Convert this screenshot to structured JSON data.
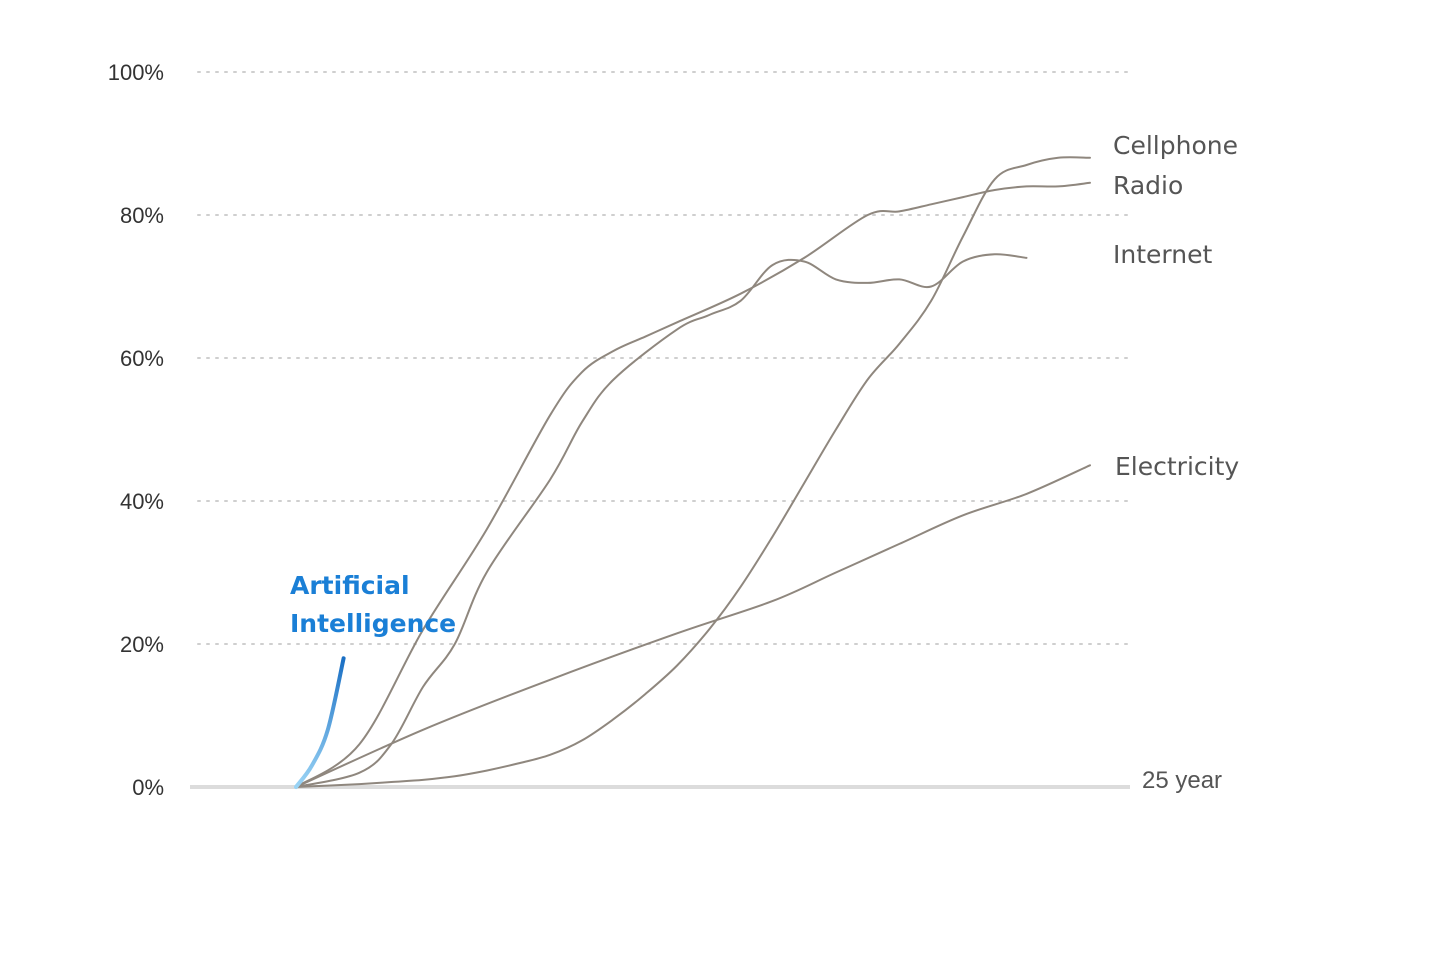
{
  "chart_data": {
    "type": "line",
    "title": "",
    "xlabel": "",
    "ylabel": "",
    "x_end_label": "25 year",
    "xlim": [
      0,
      25
    ],
    "ylim": [
      0,
      100
    ],
    "yticks": [
      0,
      20,
      40,
      60,
      80,
      100
    ],
    "ytick_labels": [
      "0%",
      "20%",
      "40%",
      "60%",
      "80%",
      "100%"
    ],
    "grid": true,
    "legend": "end-of-line labels",
    "colors": {
      "series": "#8f877e",
      "ai": "#1a7fd6",
      "ai_light": "#7cc3ef",
      "grid": "#cfcfcf",
      "baseline": "#dcdcdc"
    },
    "series": [
      {
        "name": "Cellphone",
        "x": [
          0,
          1,
          2,
          3,
          4,
          5,
          6,
          7,
          8,
          9,
          10,
          11,
          12,
          13,
          14,
          15,
          16,
          17,
          18,
          19,
          20,
          21,
          22,
          23,
          24,
          25
        ],
        "y": [
          0,
          0.2,
          0.4,
          0.7,
          1,
          1.5,
          2.3,
          3.3,
          4.5,
          6.5,
          9.5,
          13,
          17,
          22,
          28,
          35,
          42.5,
          50,
          57,
          62,
          68,
          77,
          85,
          87,
          88,
          88
        ]
      },
      {
        "name": "Radio",
        "x": [
          0,
          2,
          4,
          6,
          8,
          9,
          10,
          11,
          12,
          14,
          16,
          18,
          19,
          20,
          21,
          22,
          23,
          24,
          25
        ],
        "y": [
          0,
          6,
          22,
          36,
          52,
          58,
          61,
          63,
          65,
          69,
          74,
          80,
          80.5,
          81.5,
          82.5,
          83.5,
          84,
          84,
          84.5
        ]
      },
      {
        "name": "Internet",
        "x": [
          0,
          2,
          3,
          4,
          5,
          6,
          8,
          9,
          10,
          12,
          13,
          14,
          15,
          16,
          17,
          18,
          19,
          20,
          21,
          22,
          23
        ],
        "y": [
          0,
          2,
          6,
          14,
          20,
          30,
          43,
          51,
          57,
          64,
          66,
          68,
          73,
          73.5,
          71,
          70.5,
          71,
          70,
          73.5,
          74.5,
          74
        ]
      },
      {
        "name": "Electricity",
        "x": [
          0,
          4,
          8,
          12,
          15,
          17,
          19,
          21,
          23,
          25
        ],
        "y": [
          0,
          8,
          15,
          21.5,
          26,
          30,
          34,
          38,
          41,
          45
        ]
      },
      {
        "name": "Artificial Intelligence",
        "x": [
          0,
          0.5,
          1,
          1.5
        ],
        "y": [
          0,
          3,
          8,
          18
        ]
      }
    ]
  }
}
